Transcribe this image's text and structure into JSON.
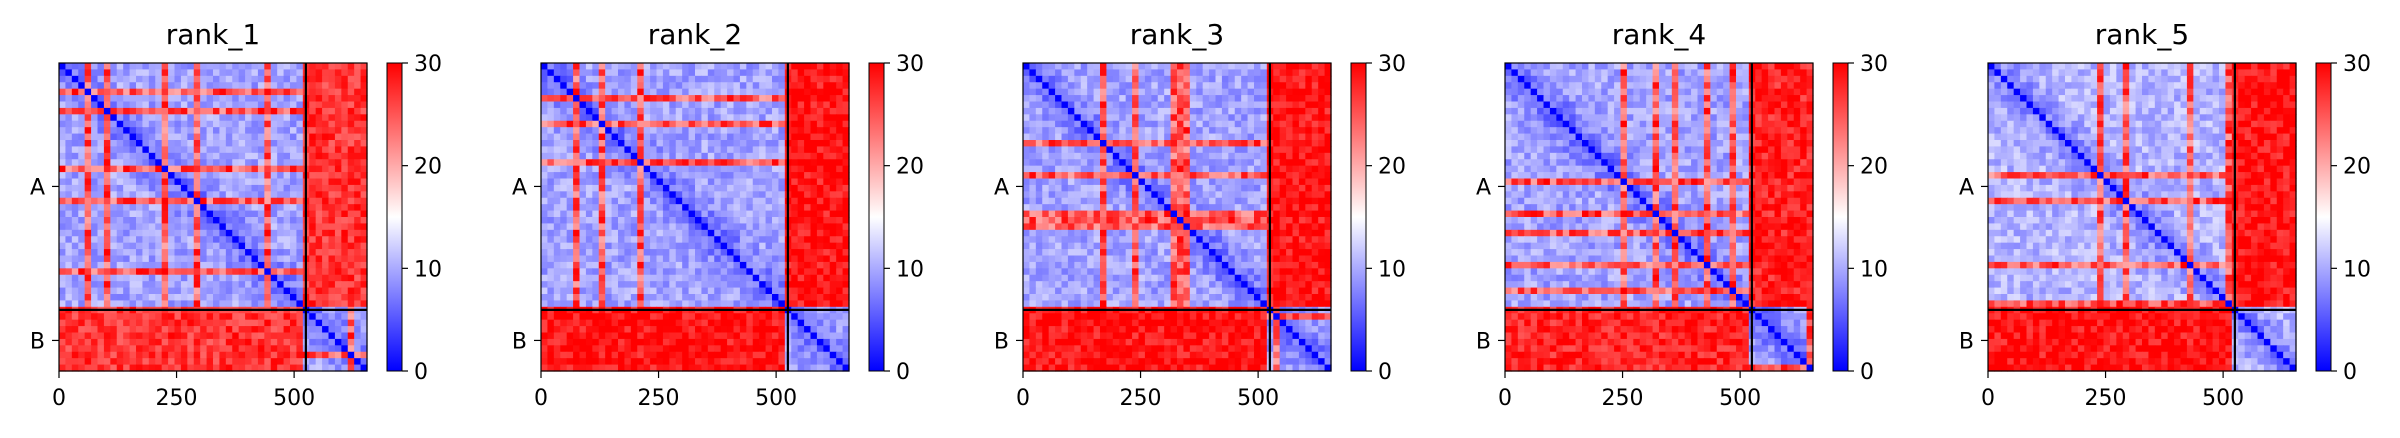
{
  "chart_data": {
    "type": "heatmap",
    "description_of_values": "Predicted aligned error heatmaps for two chains (A and B), five model ranks",
    "chains": [
      {
        "name": "A",
        "start": 0,
        "end": 525
      },
      {
        "name": "B",
        "start": 525,
        "end": 655
      }
    ],
    "x_ticks": [
      0,
      250,
      500
    ],
    "y_tick_labels": [
      "A",
      "B"
    ],
    "colorbar": {
      "min": 0,
      "max": 30,
      "ticks": [
        0,
        10,
        20,
        30
      ],
      "colors": [
        "#0000ff",
        "#ffffff",
        "#ff0000"
      ]
    },
    "panels": [
      {
        "title": "rank_1",
        "intra_a": 6,
        "intra_b": 6,
        "inter": 27
      },
      {
        "title": "rank_2",
        "intra_a": 6,
        "intra_b": 6,
        "inter": 29
      },
      {
        "title": "rank_3",
        "intra_a": 6,
        "intra_b": 6,
        "inter": 29
      },
      {
        "title": "rank_4",
        "intra_a": 6,
        "intra_b": 6,
        "inter": 28
      },
      {
        "title": "rank_5",
        "intra_a": 7,
        "intra_b": 7,
        "inter": 29
      }
    ]
  }
}
